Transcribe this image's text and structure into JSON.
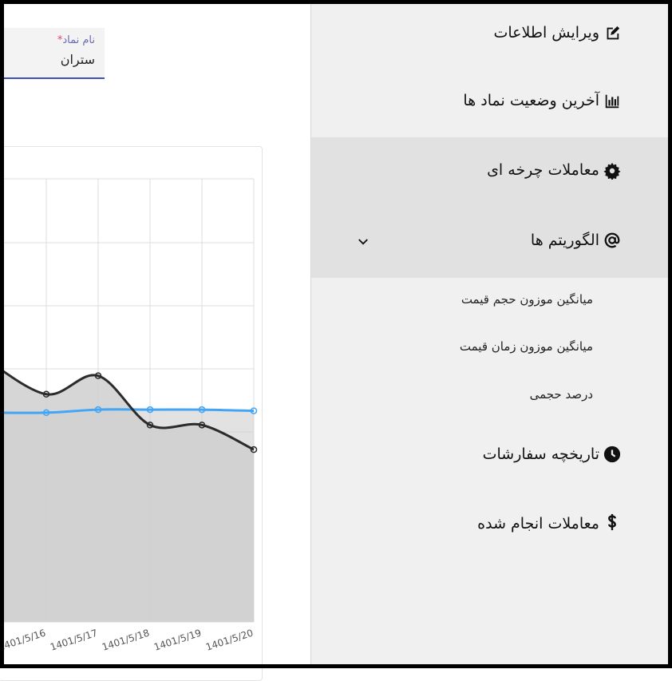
{
  "symbol_field": {
    "label": "نام نماد",
    "required_mark": "*",
    "value": "ستران"
  },
  "sidebar": {
    "items": [
      {
        "label": "ویرایش اطلاعات",
        "icon": "edit-icon"
      },
      {
        "label": "آخرین وضعیت نماد ها",
        "icon": "chart-icon"
      },
      {
        "label": "معاملات چرخه ای",
        "icon": "gear-icon"
      },
      {
        "label": "الگوریتم ها",
        "icon": "at-sign-icon",
        "expanded": true,
        "children": [
          {
            "label": "میانگین موزون حجم قیمت"
          },
          {
            "label": "میانگین موزون زمان قیمت"
          },
          {
            "label": "درصد حجمی"
          }
        ]
      },
      {
        "label": "تاریخچه سفارشات",
        "icon": "clock-icon"
      },
      {
        "label": "معاملات انجام شده",
        "icon": "dollar-icon"
      }
    ]
  },
  "colors": {
    "price_line": "#2b2b2b",
    "average_line": "#42a5f5",
    "fill_area": "#cfcfcf",
    "active_bg": "#e1e1e1",
    "sidebar_bg": "#f0f0f0"
  },
  "chart_data": {
    "type": "line",
    "categories": [
      "1401/5/16",
      "1401/5/17",
      "1401/5/18",
      "1401/5/19",
      "1401/5/20"
    ],
    "series": [
      {
        "values": [
          0.37,
          0.4,
          0.32,
          0.32,
          0.28
        ]
      },
      {
        "values": [
          0.34,
          0.345,
          0.345,
          0.345,
          0.343
        ]
      }
    ],
    "ylim": [
      0,
      0.72
    ],
    "grid": true
  }
}
